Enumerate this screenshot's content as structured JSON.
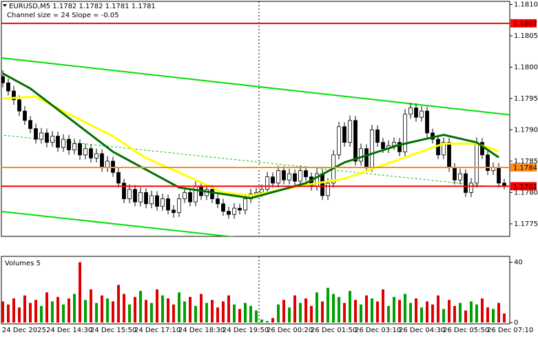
{
  "chart_data": [
    {
      "type": "candlestick",
      "title": "EURUSD,M5  1.1782 1.1782 1.1781 1.1781",
      "subtitle": "Channel size = 24 Slope = -0.05",
      "up_color": "#ffffff",
      "down_color": "#000000",
      "ylim": [
        1.1773,
        1.18105
      ],
      "yticks": [
        {
          "value": 1.181,
          "label": "1.1810"
        },
        1.1805,
        {
          "value": 1.18,
          "label": "1.1800"
        },
        1.1795,
        {
          "value": 1.179,
          "label": "1.1790"
        },
        1.1785,
        {
          "value": 1.178,
          "label": "1.1780"
        },
        1.1775
      ],
      "categories": [
        "24 Dec 2025",
        null,
        null,
        null,
        null,
        null,
        null,
        null,
        "24 Dec 14:30",
        null,
        null,
        null,
        null,
        null,
        null,
        null,
        "24 Dec 15:50",
        null,
        null,
        null,
        null,
        null,
        null,
        null,
        "24 Dec 17:10",
        null,
        null,
        null,
        null,
        null,
        null,
        null,
        "24 Dec 18:30",
        null,
        null,
        null,
        null,
        null,
        null,
        null,
        "24 Dec 19:50",
        null,
        null,
        null,
        null,
        null,
        null,
        null,
        "26 Dec 00:20",
        null,
        null,
        null,
        null,
        null,
        null,
        null,
        "26 Dec 01:50",
        null,
        null,
        null,
        null,
        null,
        null,
        null,
        "26 Dec 03:10",
        null,
        null,
        null,
        null,
        null,
        null,
        null,
        "26 Dec 04:30",
        null,
        null,
        null,
        null,
        null,
        null,
        null,
        "26 Dec 05:50",
        null,
        null,
        null,
        null,
        null,
        null,
        null,
        "26 Dec 07:10",
        null,
        null,
        null
      ],
      "candles": [
        [
          1.17985,
          1.17995,
          1.17968,
          1.17975
        ],
        [
          1.17975,
          1.17982,
          1.17955,
          1.17962
        ],
        [
          1.17962,
          1.1797,
          1.1794,
          1.17948
        ],
        [
          1.17948,
          1.17955,
          1.17922,
          1.1793
        ],
        [
          1.1793,
          1.17938,
          1.17908,
          1.17915
        ],
        [
          1.17915,
          1.17922,
          1.17895,
          1.17902
        ],
        [
          1.17902,
          1.1791,
          1.17878,
          1.17885
        ],
        [
          1.17885,
          1.17903,
          1.17878,
          1.17895
        ],
        [
          1.17895,
          1.17902,
          1.17872,
          1.1788
        ],
        [
          1.1788,
          1.17898,
          1.17873,
          1.1789
        ],
        [
          1.1789,
          1.17897,
          1.17865,
          1.17872
        ],
        [
          1.17872,
          1.17893,
          1.17865,
          1.17885
        ],
        [
          1.17885,
          1.17892,
          1.1786,
          1.17868
        ],
        [
          1.17868,
          1.17886,
          1.17861,
          1.17878
        ],
        [
          1.17878,
          1.17885,
          1.17852,
          1.1786
        ],
        [
          1.1786,
          1.17878,
          1.17853,
          1.1787
        ],
        [
          1.1787,
          1.17877,
          1.17848,
          1.17855
        ],
        [
          1.17855,
          1.1787,
          1.17848,
          1.17862
        ],
        [
          1.17862,
          1.17869,
          1.17833,
          1.1784
        ],
        [
          1.1784,
          1.17858,
          1.17833,
          1.1785
        ],
        [
          1.1785,
          1.17857,
          1.17825,
          1.17832
        ],
        [
          1.17832,
          1.1784,
          1.17808,
          1.17815
        ],
        [
          1.17815,
          1.17822,
          1.17783,
          1.1779
        ],
        [
          1.1779,
          1.17813,
          1.17783,
          1.17805
        ],
        [
          1.17805,
          1.17812,
          1.17778,
          1.17785
        ],
        [
          1.17785,
          1.17808,
          1.17778,
          1.178
        ],
        [
          1.178,
          1.17807,
          1.17775,
          1.17782
        ],
        [
          1.17782,
          1.17803,
          1.17775,
          1.17795
        ],
        [
          1.17795,
          1.17802,
          1.17771,
          1.17778
        ],
        [
          1.17778,
          1.17798,
          1.17771,
          1.1779
        ],
        [
          1.1779,
          1.17797,
          1.17765,
          1.17772
        ],
        [
          1.17772,
          1.1778,
          1.1776,
          1.17768
        ],
        [
          1.17768,
          1.17798,
          1.17761,
          1.1779
        ],
        [
          1.1779,
          1.17808,
          1.17783,
          1.178
        ],
        [
          1.178,
          1.17807,
          1.17778,
          1.17785
        ],
        [
          1.17785,
          1.17818,
          1.17778,
          1.1781
        ],
        [
          1.1781,
          1.17817,
          1.17788,
          1.17795
        ],
        [
          1.17795,
          1.17813,
          1.17788,
          1.17805
        ],
        [
          1.17805,
          1.17812,
          1.17783,
          1.1779
        ],
        [
          1.1779,
          1.17797,
          1.17775,
          1.17782
        ],
        [
          1.17782,
          1.1779,
          1.17763,
          1.1777
        ],
        [
          1.1777,
          1.17777,
          1.17758,
          1.17765
        ],
        [
          1.17765,
          1.17783,
          1.17758,
          1.17775
        ],
        [
          1.17775,
          1.17782,
          1.17765,
          1.17772
        ],
        [
          1.17772,
          1.17798,
          1.17765,
          1.1779
        ],
        [
          1.1779,
          1.17806,
          1.17783,
          1.17798
        ],
        [
          1.17798,
          1.17808,
          1.17791,
          1.178
        ],
        [
          1.178,
          1.17813,
          1.17793,
          1.17805
        ],
        [
          1.17805,
          1.17833,
          1.17798,
          1.17825
        ],
        [
          1.17825,
          1.17832,
          1.17808,
          1.17815
        ],
        [
          1.17815,
          1.17843,
          1.17808,
          1.17835
        ],
        [
          1.17835,
          1.17842,
          1.17813,
          1.1782
        ],
        [
          1.1782,
          1.17838,
          1.17813,
          1.1783
        ],
        [
          1.1783,
          1.17837,
          1.17811,
          1.17818
        ],
        [
          1.17818,
          1.17843,
          1.17811,
          1.17835
        ],
        [
          1.17835,
          1.17842,
          1.17818,
          1.17825
        ],
        [
          1.17825,
          1.17832,
          1.17803,
          1.1781
        ],
        [
          1.1781,
          1.17838,
          1.17803,
          1.1783
        ],
        [
          1.1783,
          1.17837,
          1.17788,
          1.17795
        ],
        [
          1.17795,
          1.17823,
          1.17788,
          1.17815
        ],
        [
          1.17815,
          1.17868,
          1.17808,
          1.1786
        ],
        [
          1.1786,
          1.17913,
          1.17853,
          1.17905
        ],
        [
          1.17905,
          1.17912,
          1.17873,
          1.1788
        ],
        [
          1.1788,
          1.17923,
          1.17873,
          1.17915
        ],
        [
          1.17915,
          1.17922,
          1.17843,
          1.1785
        ],
        [
          1.1785,
          1.17878,
          1.17843,
          1.1787
        ],
        [
          1.1787,
          1.17877,
          1.17833,
          1.1784
        ],
        [
          1.1784,
          1.17908,
          1.17833,
          1.179
        ],
        [
          1.179,
          1.17907,
          1.17873,
          1.1788
        ],
        [
          1.1788,
          1.17887,
          1.17863,
          1.1787
        ],
        [
          1.1787,
          1.17883,
          1.17863,
          1.17875
        ],
        [
          1.17875,
          1.17888,
          1.17868,
          1.1788
        ],
        [
          1.1788,
          1.17887,
          1.17858,
          1.17865
        ],
        [
          1.17865,
          1.17933,
          1.17858,
          1.17925
        ],
        [
          1.17925,
          1.17943,
          1.17918,
          1.17935
        ],
        [
          1.17935,
          1.17942,
          1.17913,
          1.1792
        ],
        [
          1.1792,
          1.17938,
          1.17913,
          1.1793
        ],
        [
          1.1793,
          1.17937,
          1.17888,
          1.17895
        ],
        [
          1.17895,
          1.17902,
          1.17878,
          1.17885
        ],
        [
          1.17885,
          1.17892,
          1.17853,
          1.1786
        ],
        [
          1.1786,
          1.17888,
          1.17853,
          1.1788
        ],
        [
          1.1788,
          1.17887,
          1.17833,
          1.1784
        ],
        [
          1.1784,
          1.17847,
          1.17813,
          1.1782
        ],
        [
          1.1782,
          1.17838,
          1.17813,
          1.1783
        ],
        [
          1.1783,
          1.17837,
          1.17793,
          1.178
        ],
        [
          1.178,
          1.17823,
          1.17793,
          1.17815
        ],
        [
          1.17815,
          1.17888,
          1.17808,
          1.1788
        ],
        [
          1.1788,
          1.17887,
          1.17853,
          1.1786
        ],
        [
          1.1786,
          1.17867,
          1.17828,
          1.17835
        ],
        [
          1.17835,
          1.17848,
          1.17828,
          1.1784
        ],
        [
          1.1784,
          1.17847,
          1.17808,
          1.17815
        ],
        [
          1.17815,
          1.17822,
          1.17805,
          1.1781
        ]
      ],
      "ma": [
        {
          "color": "#ffff00",
          "x": [
            0,
            6,
            12,
            20,
            26,
            32,
            40,
            45,
            55,
            62,
            72,
            80,
            86,
            90
          ],
          "values": [
            1.1795,
            1.17953,
            1.17925,
            1.1789,
            1.17855,
            1.17832,
            1.178,
            1.17795,
            1.17812,
            1.17822,
            1.17853,
            1.17878,
            1.17878,
            1.17866
          ]
        },
        {
          "color": "#007000",
          "x": [
            0,
            5,
            20,
            32,
            45,
            55,
            62,
            72,
            80,
            86,
            90
          ],
          "values": [
            1.1799,
            1.17966,
            1.17865,
            1.17808,
            1.17791,
            1.17815,
            1.17848,
            1.17876,
            1.17892,
            1.1788,
            1.17856
          ]
        }
      ],
      "channel": [
        {
          "color": "#00e000",
          "x": [
            -0.5,
            92
          ],
          "values": [
            1.18015,
            1.17924
          ]
        },
        {
          "color": "#00c000",
          "dashed": true,
          "x": [
            -0.5,
            87
          ],
          "values": [
            1.17892,
            1.17811
          ]
        },
        {
          "color": "#00e000",
          "x": [
            -0.5,
            72
          ],
          "values": [
            1.1777,
            1.177
          ]
        }
      ],
      "hlines": [
        {
          "value": 1.1807,
          "color": "#ff0000"
        },
        {
          "value": 1.1784,
          "color": "#ff8c1a"
        },
        {
          "value": 1.1781,
          "color": "#ff0000"
        }
      ]
    },
    {
      "type": "bar",
      "title": "Volumes 5",
      "up_color": "#00a000",
      "down_color": "#e00000",
      "ylim": [
        0,
        43
      ],
      "yticks": [
        0,
        40
      ],
      "values": [
        14,
        12,
        16,
        10,
        18,
        13,
        15,
        11,
        20,
        14,
        17,
        12,
        16,
        19,
        40,
        15,
        22,
        13,
        18,
        16,
        14,
        25,
        19,
        12,
        17,
        21,
        15,
        13,
        22,
        18,
        16,
        12,
        20,
        14,
        17,
        11,
        19,
        13,
        15,
        10,
        14,
        18,
        12,
        9,
        13,
        11,
        8,
        2,
        1,
        3,
        12,
        15,
        10,
        18,
        13,
        16,
        11,
        20,
        14,
        23,
        19,
        17,
        13,
        21,
        15,
        12,
        18,
        16,
        14,
        22,
        11,
        17,
        15,
        19,
        13,
        16,
        10,
        14,
        12,
        18,
        9,
        15,
        11,
        13,
        8,
        14,
        12,
        16,
        10,
        9,
        13,
        6
      ]
    }
  ]
}
